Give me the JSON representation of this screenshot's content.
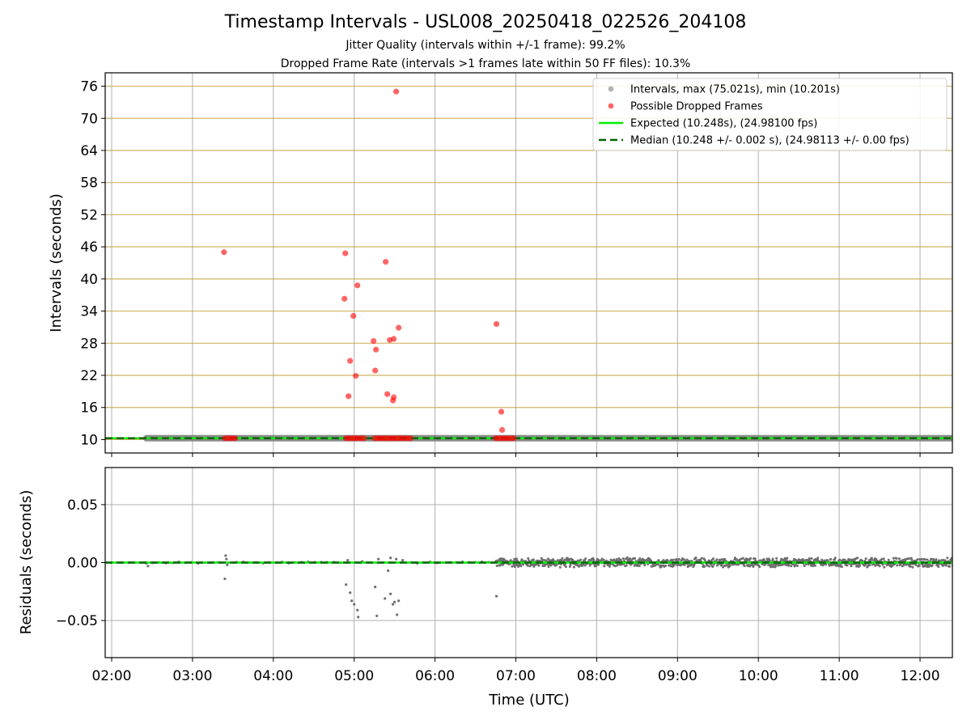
{
  "chart_data": [
    {
      "type": "scatter",
      "title": "Timestamp Intervals - USL008_20250418_022526_204108",
      "subtitle_lines": [
        "Jitter Quality (intervals within +/-1 frame): 99.2%",
        "Dropped Frame Rate (intervals >1 frames late within 50 FF files): 10.3%"
      ],
      "xlabel": "",
      "ylabel": "Intervals (seconds)",
      "xlim_hours": [
        1.92,
        12.4
      ],
      "ylim": [
        7.5,
        78.5
      ],
      "y_ticks": [
        10,
        16,
        22,
        28,
        34,
        40,
        46,
        52,
        58,
        64,
        70,
        76
      ],
      "x_ticks_hours": [
        2,
        3,
        4,
        5,
        6,
        7,
        8,
        9,
        10,
        11,
        12
      ],
      "grid": true,
      "legend_placement": "top-right",
      "legend": [
        "Intervals, max (75.021s), min (10.201s)",
        "Possible Dropped Frames",
        "Expected (10.248s), (24.98100 fps)",
        "Median (10.248 +/- 0.002 s), (24.98113 +/- 0.00 fps)"
      ],
      "colors": {
        "intervals": "#808080",
        "dropped": "#ff0000",
        "expected": "#00ee00",
        "median": "#006400",
        "hline": "#c8a040"
      },
      "intervals_band": {
        "x_range_hours": [
          2.43,
          12.4
        ],
        "y": 10.25
      },
      "dropped_clusters": [
        {
          "x_range_hours": [
            3.4,
            3.55
          ],
          "y": 10.25
        },
        {
          "x_range_hours": [
            4.9,
            5.15
          ],
          "y": 10.25
        },
        {
          "x_range_hours": [
            5.25,
            5.7
          ],
          "y": 10.25
        },
        {
          "x_range_hours": [
            6.75,
            6.98
          ],
          "y": 10.25
        }
      ],
      "dropped_points": [
        {
          "x": 3.39,
          "y": 45
        },
        {
          "x": 4.89,
          "y": 44.8
        },
        {
          "x": 4.88,
          "y": 36.3
        },
        {
          "x": 4.93,
          "y": 18.1
        },
        {
          "x": 4.95,
          "y": 24.7
        },
        {
          "x": 4.99,
          "y": 33.1
        },
        {
          "x": 5.02,
          "y": 21.9
        },
        {
          "x": 5.04,
          "y": 38.8
        },
        {
          "x": 5.24,
          "y": 28.4
        },
        {
          "x": 5.27,
          "y": 26.8
        },
        {
          "x": 5.26,
          "y": 22.9
        },
        {
          "x": 5.39,
          "y": 43.2
        },
        {
          "x": 5.41,
          "y": 18.5
        },
        {
          "x": 5.44,
          "y": 28.6
        },
        {
          "x": 5.48,
          "y": 17.3
        },
        {
          "x": 5.49,
          "y": 17.9
        },
        {
          "x": 5.49,
          "y": 28.8
        },
        {
          "x": 5.52,
          "y": 75
        },
        {
          "x": 5.55,
          "y": 30.9
        },
        {
          "x": 6.76,
          "y": 31.6
        },
        {
          "x": 6.82,
          "y": 15.2
        },
        {
          "x": 6.83,
          "y": 11.8
        }
      ],
      "expected_y": 10.248,
      "median_y": 10.248
    },
    {
      "type": "scatter",
      "title": "",
      "xlabel": "Time (UTC)",
      "ylabel": "Residuals (seconds)",
      "xlim_hours": [
        1.92,
        12.4
      ],
      "ylim": [
        -0.082,
        0.082
      ],
      "y_ticks": [
        0.05,
        0.0,
        -0.05
      ],
      "y_tick_labels": [
        "0.05",
        "0.00",
        "−0.05"
      ],
      "x_ticks_hours": [
        2,
        3,
        4,
        5,
        6,
        7,
        8,
        9,
        10,
        11,
        12
      ],
      "x_tick_labels": [
        "02:00",
        "03:00",
        "04:00",
        "05:00",
        "06:00",
        "07:00",
        "08:00",
        "09:00",
        "10:00",
        "11:00",
        "12:00"
      ],
      "grid": true,
      "residual_band": {
        "x_range_hours": [
          6.75,
          12.4
        ],
        "y_spread": 0.0045
      },
      "residual_outliers": [
        {
          "x": 2.45,
          "y": -0.003
        },
        {
          "x": 3.41,
          "y": 0.006
        },
        {
          "x": 3.42,
          "y": 0.003
        },
        {
          "x": 3.4,
          "y": -0.014
        },
        {
          "x": 3.43,
          "y": -0.002
        },
        {
          "x": 4.9,
          "y": -0.019
        },
        {
          "x": 4.95,
          "y": -0.026
        },
        {
          "x": 4.97,
          "y": -0.033
        },
        {
          "x": 5.0,
          "y": -0.036
        },
        {
          "x": 5.04,
          "y": -0.041
        },
        {
          "x": 5.05,
          "y": -0.047
        },
        {
          "x": 5.26,
          "y": -0.021
        },
        {
          "x": 5.28,
          "y": -0.046
        },
        {
          "x": 5.38,
          "y": -0.031
        },
        {
          "x": 5.42,
          "y": -0.007
        },
        {
          "x": 5.45,
          "y": -0.027
        },
        {
          "x": 5.48,
          "y": -0.036
        },
        {
          "x": 5.5,
          "y": -0.034
        },
        {
          "x": 5.53,
          "y": -0.045
        },
        {
          "x": 5.55,
          "y": -0.033
        },
        {
          "x": 6.76,
          "y": -0.029
        },
        {
          "x": 4.92,
          "y": 0.002
        },
        {
          "x": 5.3,
          "y": 0.003
        },
        {
          "x": 5.45,
          "y": 0.004
        },
        {
          "x": 5.52,
          "y": 0.003
        },
        {
          "x": 5.6,
          "y": 0.002
        },
        {
          "x": 5.1,
          "y": 0.001
        }
      ],
      "zero_line_y": 0.0
    }
  ]
}
